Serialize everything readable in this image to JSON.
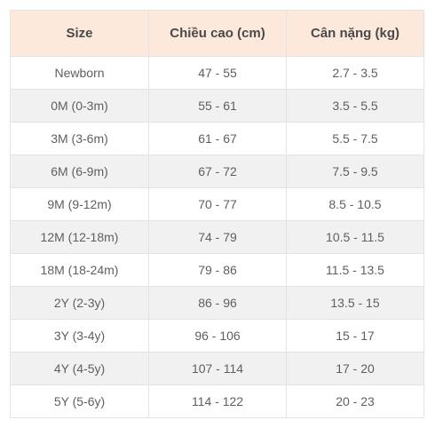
{
  "table": {
    "headers": [
      "Size",
      "Chiều cao (cm)",
      "Cân nặng (kg)"
    ],
    "rows": [
      [
        "Newborn",
        "47 - 55",
        "2.7 - 3.5"
      ],
      [
        "0M (0-3m)",
        "55 - 61",
        "3.5 - 5.5"
      ],
      [
        "3M (3-6m)",
        "61 - 67",
        "5.5 - 7.5"
      ],
      [
        "6M (6-9m)",
        "67 - 72",
        "7.5 - 9.5"
      ],
      [
        "9M (9-12m)",
        "70 - 77",
        "8.5 - 10.5"
      ],
      [
        "12M (12-18m)",
        "74 - 79",
        "10.5 - 11.5"
      ],
      [
        "18M (18-24m)",
        "79 - 86",
        "11.5 - 13.5"
      ],
      [
        "2Y (2-3y)",
        "86 - 96",
        "13.5 - 15"
      ],
      [
        "3Y (3-4y)",
        "96 - 106",
        "15 - 17"
      ],
      [
        "4Y (4-5y)",
        "107 - 114",
        "17 - 20"
      ],
      [
        "5Y (5-6y)",
        "114 - 122",
        "20 - 23"
      ]
    ]
  },
  "colors": {
    "header_background": "#fde9dc",
    "striped_row_background": "#f1f1f1",
    "border": "#e3e3e3"
  }
}
